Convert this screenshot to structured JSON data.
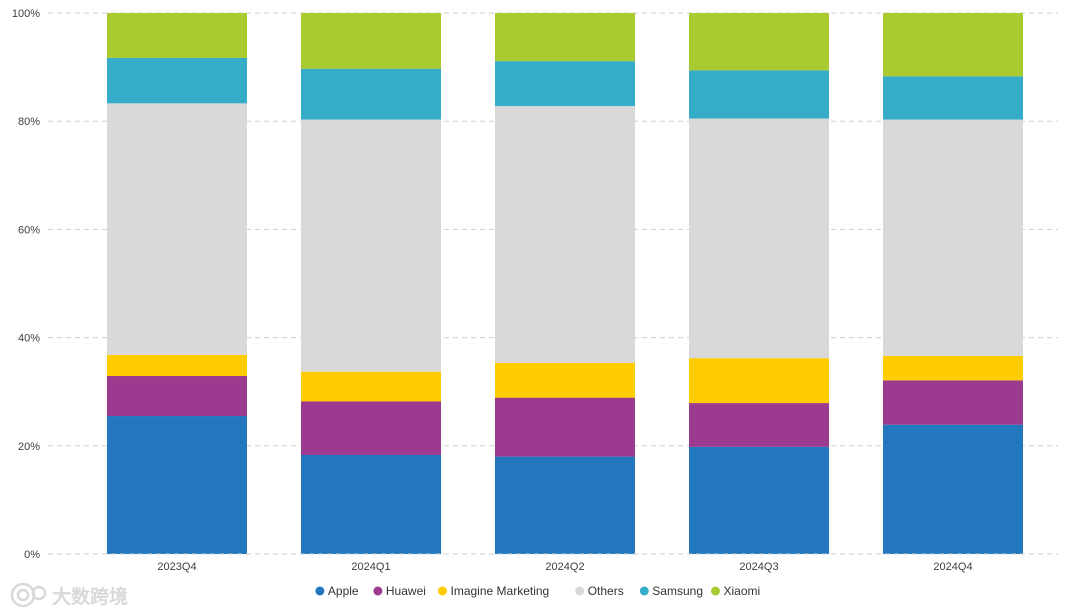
{
  "chart_data": {
    "type": "bar",
    "stacked": true,
    "percent": true,
    "categories": [
      "2023Q4",
      "2024Q1",
      "2024Q2",
      "2024Q3",
      "2024Q4"
    ],
    "series": [
      {
        "name": "Apple",
        "color": "#2277bd",
        "values": [
          25.5,
          18.3,
          18.0,
          19.8,
          23.9
        ]
      },
      {
        "name": "Huawei",
        "color": "#9b3a8e",
        "values": [
          7.4,
          9.9,
          10.9,
          8.1,
          8.2
        ]
      },
      {
        "name": "Imagine Marketing",
        "color": "#ffcc00",
        "values": [
          3.9,
          5.5,
          6.4,
          8.3,
          4.5
        ]
      },
      {
        "name": "Others",
        "color": "#d9d9d9",
        "values": [
          46.5,
          46.6,
          47.5,
          44.3,
          43.7
        ]
      },
      {
        "name": "Samsung",
        "color": "#35adc8",
        "values": [
          8.4,
          9.4,
          8.3,
          8.9,
          8.0
        ]
      },
      {
        "name": "Xiaomi",
        "color": "#a9ca31",
        "values": [
          8.3,
          10.3,
          8.9,
          10.6,
          11.7
        ]
      }
    ],
    "y_ticks": [
      "0%",
      "20%",
      "40%",
      "60%",
      "80%",
      "100%"
    ],
    "ylim": [
      0,
      100
    ],
    "grid": true,
    "legend_position": "bottom"
  },
  "watermark": {
    "text": "大数跨境",
    "icon": "logo-icon"
  }
}
